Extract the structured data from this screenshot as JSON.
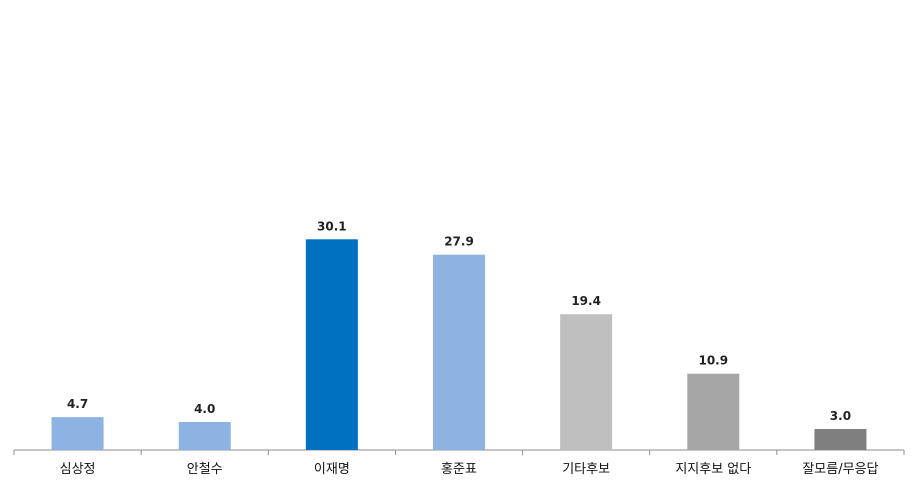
{
  "chart_data": {
    "type": "bar",
    "title": "",
    "xlabel": "",
    "ylabel": "",
    "categories": [
      "심상정",
      "안철수",
      "이재명",
      "홍준표",
      "기타후보",
      "지지후보 없다",
      "잘모름/무응답"
    ],
    "values": [
      4.7,
      4.0,
      30.1,
      27.9,
      19.4,
      10.9,
      3.0
    ],
    "value_labels": [
      "4.7",
      "4.0",
      "30.1",
      "27.9",
      "19.4",
      "10.9",
      "3.0"
    ],
    "colors": [
      "#8DB3E2",
      "#8DB3E2",
      "#0070C0",
      "#8DB3E2",
      "#BFBFBF",
      "#A6A6A6",
      "#7F7F7F"
    ],
    "ylim": [
      0,
      60
    ],
    "grid": false,
    "legend": "none"
  }
}
